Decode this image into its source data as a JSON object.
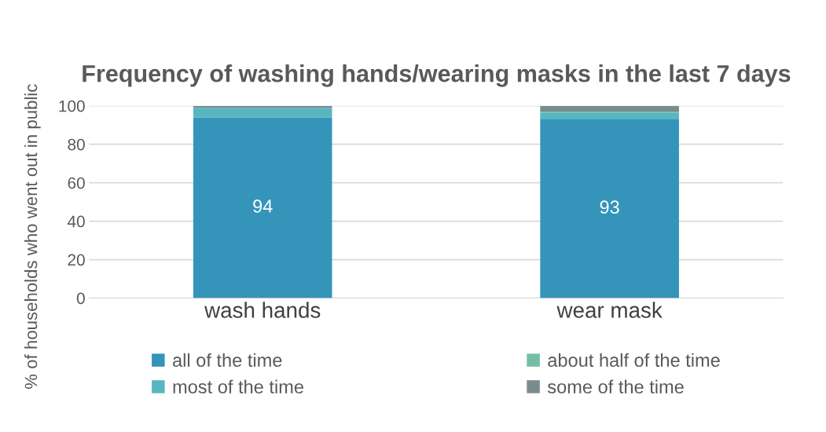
{
  "chart_data": {
    "type": "bar",
    "stacked": true,
    "title": "Frequency of washing hands/wearing masks in the last 7 days",
    "ylabel": "% of households who went out in public",
    "categories": [
      "wash hands",
      "wear mask"
    ],
    "series": [
      {
        "name": "all of the time",
        "color": "#3494ba",
        "values": [
          94,
          93
        ],
        "value_labels": [
          "94",
          "93"
        ]
      },
      {
        "name": "most of the time",
        "color": "#58b6c0",
        "values": [
          5,
          3.5
        ]
      },
      {
        "name": "about half of the time",
        "color": "#75bda7",
        "values": [
          0,
          0.5
        ]
      },
      {
        "name": "some of the time",
        "color": "#7a8c8e",
        "values": [
          1,
          3
        ]
      }
    ],
    "ylim": [
      0,
      100
    ],
    "yticks": [
      0,
      20,
      40,
      60,
      80,
      100
    ],
    "grid": "y",
    "legend": "bottom"
  }
}
